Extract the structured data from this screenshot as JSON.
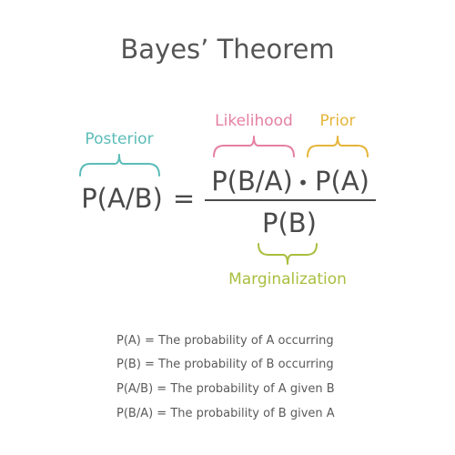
{
  "title": "Bayes’ Theorem",
  "colors": {
    "posterior": "#5bbcb8",
    "likelihood": "#e57fa3",
    "prior": "#e5b53a",
    "marginalization": "#a8bf3f",
    "text": "#4a4a4a",
    "definition_text": "#5a5a5a"
  },
  "labels": {
    "posterior": "Posterior",
    "likelihood": "Likelihood",
    "prior": "Prior",
    "marginalization": "Marginalization"
  },
  "formula": {
    "lhs": "P(A/B)",
    "equals": "=",
    "likelihood_term": "P(B/A)",
    "dot": "•",
    "prior_term": "P(A)",
    "denominator": "P(B)"
  },
  "definitions": [
    "P(A) = The probability of A occurring",
    "P(B) = The probability of B occurring",
    "P(A/B) = The probability of A given B",
    "P(B/A) = The probability of B given A"
  ]
}
